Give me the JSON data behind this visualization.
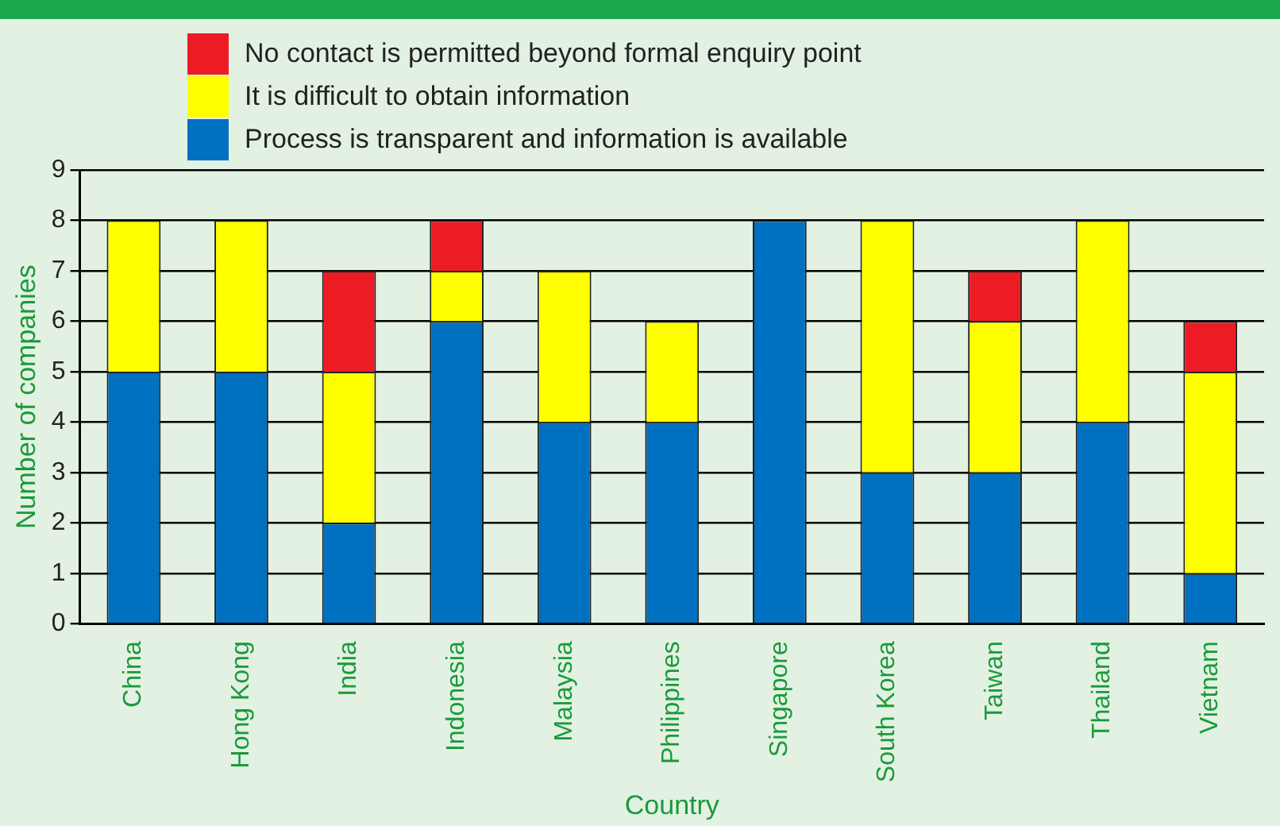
{
  "chart_data": {
    "type": "bar",
    "stacked": true,
    "xlabel": "Country",
    "ylabel": "Number of companies",
    "categories": [
      "China",
      "Hong Kong",
      "India",
      "Indonesia",
      "Malaysia",
      "Philippines",
      "Singapore",
      "South Korea",
      "Taiwan",
      "Thailand",
      "Vietnam"
    ],
    "series": [
      {
        "name": "Process is transparent and information is available",
        "color": "#0070c0",
        "values": [
          5,
          5,
          2,
          6,
          4,
          4,
          8,
          3,
          3,
          4,
          1
        ]
      },
      {
        "name": "It is difficult to obtain information",
        "color": "#ffff00",
        "values": [
          3,
          3,
          3,
          1,
          3,
          2,
          0,
          5,
          3,
          4,
          4
        ]
      },
      {
        "name": "No contact is permitted beyond formal enquiry point",
        "color": "#ed1c24",
        "values": [
          0,
          0,
          2,
          1,
          0,
          0,
          0,
          0,
          1,
          0,
          1
        ]
      }
    ],
    "ylim": [
      0,
      9
    ],
    "yticks": [
      0,
      1,
      2,
      3,
      4,
      5,
      6,
      7,
      8,
      9
    ],
    "grid": "y",
    "legend": "top"
  }
}
